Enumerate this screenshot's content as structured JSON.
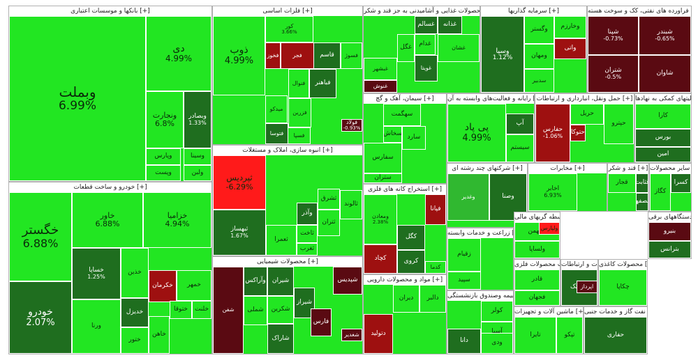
{
  "colors": {
    "up_strong": "#22e622",
    "up_mid": "#30b830",
    "up_dark": "#1f6e1f",
    "down_strong": "#ff1a1a",
    "down_mid": "#9e1010",
    "down_dark": "#5a0a12",
    "border": "#ffffff"
  },
  "sectors": [
    {
      "title": "بانکها و موسسات اعتباری [+]",
      "tiles": [
        {
          "sym": "وبملت",
          "pct": "6.99%",
          "color": "up_strong"
        },
        {
          "sym": "دی",
          "pct": "4.99%",
          "color": "up_strong"
        },
        {
          "sym": "ونجارت",
          "pct": "6.8%",
          "color": "up_strong"
        },
        {
          "sym": "وبصادر",
          "pct": "1.33%",
          "color": "up_dark"
        },
        {
          "sym": "وپارس",
          "pct": "",
          "color": "up_strong"
        },
        {
          "sym": "وسینا",
          "pct": "",
          "color": "up_strong"
        },
        {
          "sym": "وپست",
          "pct": "",
          "color": "up_strong"
        },
        {
          "sym": "ولبن",
          "pct": "",
          "color": "up_strong"
        }
      ]
    },
    {
      "title": "فلزات اساسی [+]",
      "tiles": [
        {
          "sym": "ذوب",
          "pct": "4.99%",
          "color": "up_strong"
        },
        {
          "sym": "فولاد",
          "pct": "-0.93%",
          "color": "down_dark"
        },
        {
          "sym": "کور",
          "pct": "3.66%",
          "color": "up_strong"
        },
        {
          "sym": "فخوز",
          "pct": "",
          "color": "down_mid"
        },
        {
          "sym": "فجر",
          "pct": "",
          "color": "down_mid"
        },
        {
          "sym": "قاسم",
          "pct": "",
          "color": "up_dark"
        },
        {
          "sym": "فسوژ",
          "pct": "",
          "color": "up_strong"
        },
        {
          "sym": "فنوال",
          "pct": "",
          "color": "up_strong"
        },
        {
          "sym": "میدکو",
          "pct": "",
          "color": "up_strong"
        },
        {
          "sym": "فباهنر",
          "pct": "",
          "color": "up_dark"
        },
        {
          "sym": "فزرین",
          "pct": "",
          "color": "up_strong"
        },
        {
          "sym": "فتوسا",
          "pct": "",
          "color": "up_dark"
        },
        {
          "sym": "فسپا",
          "pct": "",
          "color": "up_strong"
        }
      ]
    },
    {
      "title": "محصولات غذایی و آشامیدنی به جز قند و شکر [+]",
      "tiles": [
        {
          "sym": "غسالم",
          "pct": "",
          "color": "up_dark"
        },
        {
          "sym": "غذانه",
          "pct": "",
          "color": "up_dark"
        },
        {
          "sym": "غبشهر",
          "pct": "",
          "color": "up_strong"
        },
        {
          "sym": "غگل",
          "pct": "",
          "color": "up_strong"
        },
        {
          "sym": "غدام",
          "pct": "",
          "color": "up_strong"
        },
        {
          "sym": "غنوش",
          "pct": "",
          "color": "down_dark"
        },
        {
          "sym": "غویتا",
          "pct": "",
          "color": "up_dark"
        },
        {
          "sym": "غشان",
          "pct": "",
          "color": "up_strong"
        }
      ]
    },
    {
      "title": "سرمایه گذاریها [+]",
      "tiles": [
        {
          "sym": "وسپا",
          "pct": "1.12%",
          "color": "up_dark"
        },
        {
          "sym": "وگستر",
          "pct": "",
          "color": "up_strong"
        },
        {
          "sym": "ومهان",
          "pct": "",
          "color": "up_strong"
        },
        {
          "sym": "وخارزم",
          "pct": "",
          "color": "up_strong"
        },
        {
          "sym": "سدبیر",
          "pct": "",
          "color": "up_strong"
        },
        {
          "sym": "واتی",
          "pct": "",
          "color": "down_mid"
        }
      ]
    },
    {
      "title": "فراورده های نفتی، کک و سوخت هسته [+]",
      "tiles": [
        {
          "sym": "شپنا",
          "pct": "-0.73%",
          "color": "down_dark"
        },
        {
          "sym": "شبندر",
          "pct": "-0.65%",
          "color": "down_dark"
        },
        {
          "sym": "شتران",
          "pct": "-0.5%",
          "color": "down_dark"
        },
        {
          "sym": "شاوان",
          "pct": "",
          "color": "down_dark"
        }
      ]
    },
    {
      "title": "سیمان، آهک و گچ [+]",
      "tiles": [
        {
          "sym": "سهگمت",
          "pct": "",
          "color": "up_strong"
        },
        {
          "sym": "سفارس",
          "pct": "",
          "color": "up_strong"
        },
        {
          "sym": "ستران",
          "pct": "",
          "color": "up_strong"
        },
        {
          "sym": "سارد",
          "pct": "",
          "color": "up_strong"
        },
        {
          "sym": "سخاش",
          "pct": "",
          "color": "up_strong"
        }
      ]
    },
    {
      "title": "رایانه و فعالیت‌های وابسته به آن [+]",
      "tiles": [
        {
          "sym": "پی پاد",
          "pct": "4.99%",
          "color": "up_strong"
        },
        {
          "sym": "آپ",
          "pct": "",
          "color": "up_dark"
        },
        {
          "sym": "سیستم",
          "pct": "",
          "color": "up_strong"
        }
      ]
    },
    {
      "title": "حمل ونقل، انبارداری و ارتباطات [+]",
      "tiles": [
        {
          "sym": "حفارس",
          "pct": "-1.06%",
          "color": "down_mid"
        },
        {
          "sym": "حتوکا",
          "pct": "",
          "color": "down_mid"
        },
        {
          "sym": "حریل",
          "pct": "",
          "color": "up_strong"
        },
        {
          "sym": "حپترو",
          "pct": "",
          "color": "up_strong"
        }
      ]
    },
    {
      "title": "فعالیتهای کمکی به نهادها [+]",
      "tiles": [
        {
          "sym": "بورس",
          "pct": "",
          "color": "up_dark"
        },
        {
          "sym": "امین",
          "pct": "",
          "color": "up_dark"
        },
        {
          "sym": "کارا",
          "pct": "",
          "color": "up_strong"
        }
      ]
    },
    {
      "title": "خودرو و ساخت قطعات [+]",
      "tiles": [
        {
          "sym": "خگستر",
          "pct": "6.88%",
          "color": "up_strong"
        },
        {
          "sym": "خاور",
          "pct": "6.88%",
          "color": "up_strong"
        },
        {
          "sym": "خزامیا",
          "pct": "4.94%",
          "color": "up_strong"
        },
        {
          "sym": "خودرو",
          "pct": "2.07%",
          "color": "up_dark"
        },
        {
          "sym": "خساپا",
          "pct": "1.25%",
          "color": "up_dark"
        },
        {
          "sym": "خکرمان",
          "pct": "",
          "color": "down_mid"
        },
        {
          "sym": "خذین",
          "pct": "",
          "color": "up_strong"
        },
        {
          "sym": "خمهر",
          "pct": "",
          "color": "up_strong"
        },
        {
          "sym": "ختوقا",
          "pct": "",
          "color": "up_strong"
        },
        {
          "sym": "خدیزل",
          "pct": "",
          "color": "up_dark"
        },
        {
          "sym": "خاهن",
          "pct": "",
          "color": "up_strong"
        },
        {
          "sym": "ختور",
          "pct": "",
          "color": "up_strong"
        },
        {
          "sym": "خلنت",
          "pct": "",
          "color": "up_strong"
        },
        {
          "sym": "ورنا",
          "pct": "",
          "color": "up_strong"
        }
      ]
    },
    {
      "title": "انبوه سازی، املاک و مستغلات [+]",
      "tiles": [
        {
          "sym": "ثپردیس",
          "pct": "-6.29%",
          "color": "down_strong"
        },
        {
          "sym": "ثبهساز",
          "pct": "1.67%",
          "color": "up_dark"
        },
        {
          "sym": "ثالوند",
          "pct": "",
          "color": "up_strong"
        },
        {
          "sym": "ثشرق",
          "pct": "",
          "color": "up_strong"
        },
        {
          "sym": "وآذر",
          "pct": "",
          "color": "up_dark"
        },
        {
          "sym": "ثتران",
          "pct": "",
          "color": "up_strong"
        },
        {
          "sym": "ثعمرا",
          "pct": "",
          "color": "up_strong"
        },
        {
          "sym": "ثاخت",
          "pct": "",
          "color": "up_strong"
        },
        {
          "sym": "ثغرب",
          "pct": "",
          "color": "up_strong"
        }
      ]
    },
    {
      "title": "استخراج کانه های فلزی [+]",
      "tiles": [
        {
          "sym": "ومعادن",
          "pct": "2.38%",
          "color": "up_strong"
        },
        {
          "sym": "کگل",
          "pct": "",
          "color": "up_dark"
        },
        {
          "sym": "کروی",
          "pct": "",
          "color": "up_dark"
        },
        {
          "sym": "کدما",
          "pct": "",
          "color": "up_strong"
        },
        {
          "sym": "فپانا",
          "pct": "",
          "color": "down_mid"
        },
        {
          "sym": "کچاد",
          "pct": "",
          "color": "down_mid"
        }
      ]
    },
    {
      "title": "شرکتهای چند رشته ای [+]",
      "tiles": [
        {
          "sym": "وغدیر",
          "pct": "",
          "color": "up_mid"
        },
        {
          "sym": "وصنا",
          "pct": "",
          "color": "up_dark"
        }
      ]
    },
    {
      "title": "مخابرات [+]",
      "tiles": [
        {
          "sym": "اخابر",
          "pct": "6.93%",
          "color": "up_strong"
        }
      ]
    },
    {
      "title": "قند و شکر [+]",
      "tiles": [
        {
          "sym": "قثابت",
          "pct": "",
          "color": "up_dark"
        },
        {
          "sym": "قصفها",
          "pct": "",
          "color": "up_dark"
        },
        {
          "sym": "قجار",
          "pct": "",
          "color": "up_strong"
        }
      ]
    },
    {
      "title": "سایر محصولات [+]",
      "tiles": [
        {
          "sym": "کگاز",
          "pct": "",
          "color": "up_strong"
        },
        {
          "sym": "کسرا",
          "pct": "",
          "color": "up_dark"
        }
      ]
    },
    {
      "title": "محصولات شیمیایی [+]",
      "tiles": [
        {
          "sym": "شیران",
          "pct": "",
          "color": "up_dark"
        },
        {
          "sym": "شکرین",
          "pct": "",
          "color": "up_strong"
        },
        {
          "sym": "شاراک",
          "pct": "",
          "color": "up_dark"
        },
        {
          "sym": "شفن",
          "pct": "",
          "color": "down_dark"
        },
        {
          "sym": "شغدیر",
          "pct": "",
          "color": "down_dark"
        },
        {
          "sym": "شملی",
          "pct": "",
          "color": "up_strong"
        },
        {
          "sym": "شیراز",
          "pct": "",
          "color": "up_dark"
        },
        {
          "sym": "فارس",
          "pct": "",
          "color": "down_dark"
        },
        {
          "sym": "وآراکس",
          "pct": "",
          "color": "up_dark"
        },
        {
          "sym": "شپدیس",
          "pct": "",
          "color": "down_dark"
        }
      ]
    },
    {
      "title": "مواد و محصولات دارویی [+]",
      "tiles": [
        {
          "sym": "دتولید",
          "pct": "",
          "color": "down_mid"
        },
        {
          "sym": "دیران",
          "pct": "",
          "color": "up_strong"
        },
        {
          "sym": "دالبر",
          "pct": "",
          "color": "up_strong"
        }
      ]
    },
    {
      "title": "زراعت و خدمات وابسته [+]",
      "tiles": [
        {
          "sym": "زقیام",
          "pct": "",
          "color": "up_strong"
        },
        {
          "sym": "سپید",
          "pct": "",
          "color": "up_strong"
        }
      ]
    },
    {
      "title": "بیمه وصندوق بازنشستگی [+]",
      "tiles": [
        {
          "sym": "کولر",
          "pct": "",
          "color": "up_strong"
        },
        {
          "sym": "آسیا",
          "pct": "",
          "color": "up_strong"
        },
        {
          "sym": "البرز",
          "pct": "",
          "color": "up_strong"
        },
        {
          "sym": "ودی",
          "pct": "",
          "color": "up_strong"
        },
        {
          "sym": "دانا",
          "pct": "",
          "color": "up_dark"
        }
      ]
    },
    {
      "title": "سایر واسطه گریهای مالی [+]",
      "tiles": [
        {
          "sym": "ولیهمن",
          "pct": "",
          "color": "up_strong"
        },
        {
          "sym": "ولساپا",
          "pct": "",
          "color": "up_strong"
        },
        {
          "sym": "ولپارس",
          "pct": "",
          "color": "down_strong"
        }
      ]
    },
    {
      "title": "ساخت محصولات فلزی [+]",
      "tiles": [
        {
          "sym": "فجهان",
          "pct": "",
          "color": "up_strong"
        },
        {
          "sym": "قادر",
          "pct": "",
          "color": "up_strong"
        }
      ]
    },
    {
      "title": "اطلاعات و ارتباطات [+]",
      "tiles": [
        {
          "sym": "اسیاتک",
          "pct": "",
          "color": "up_dark"
        },
        {
          "sym": "اپرداز",
          "pct": "",
          "color": "down_dark"
        }
      ]
    },
    {
      "title": "محصولات کاغذی [+]",
      "tiles": [
        {
          "sym": "چکاپا",
          "pct": "",
          "color": "up_strong"
        }
      ]
    },
    {
      "title": "ماشین آلات و تجهیزات [+]",
      "tiles": [
        {
          "sym": "تایرا",
          "pct": "",
          "color": "up_strong"
        },
        {
          "sym": "تپکو",
          "pct": "",
          "color": "up_strong"
        }
      ]
    },
    {
      "title": "استخراج نفت گاز و خدمات جنبی [+]",
      "tiles": [
        {
          "sym": "حفاری",
          "pct": "",
          "color": "up_dark"
        }
      ]
    },
    {
      "title": "ماشین آلات و دستگاههای برقی [+]",
      "tiles": [
        {
          "sym": "بنیرو",
          "pct": "",
          "color": "down_dark"
        },
        {
          "sym": "بترانس",
          "pct": "",
          "color": "up_dark"
        }
      ]
    }
  ]
}
